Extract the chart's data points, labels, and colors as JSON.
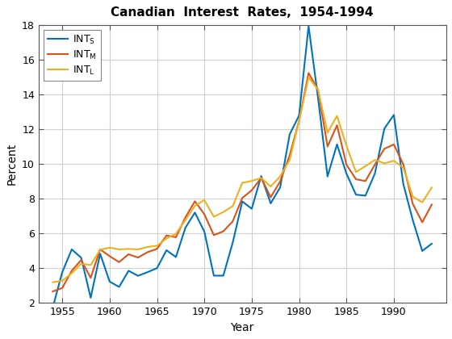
{
  "title": "Canadian  Interest  Rates,  1954-1994",
  "xlabel": "Year",
  "ylabel": "Percent",
  "years": [
    1954,
    1955,
    1956,
    1957,
    1958,
    1959,
    1960,
    1961,
    1962,
    1963,
    1964,
    1965,
    1966,
    1967,
    1968,
    1969,
    1970,
    1971,
    1972,
    1973,
    1974,
    1975,
    1976,
    1977,
    1978,
    1979,
    1980,
    1981,
    1982,
    1983,
    1984,
    1985,
    1986,
    1987,
    1988,
    1989,
    1990,
    1991,
    1992,
    1993,
    1994
  ],
  "INT_S": [
    1.73,
    3.76,
    5.07,
    4.59,
    2.29,
    4.82,
    3.22,
    2.91,
    3.84,
    3.55,
    3.76,
    3.99,
    5.02,
    4.63,
    6.32,
    7.19,
    6.09,
    3.56,
    3.56,
    5.47,
    7.83,
    7.41,
    9.29,
    7.72,
    8.64,
    11.68,
    12.78,
    17.93,
    13.78,
    9.27,
    11.11,
    9.43,
    8.22,
    8.16,
    9.44,
    12.02,
    12.81,
    8.83,
    6.76,
    4.98,
    5.4
  ],
  "INT_M": [
    2.65,
    2.85,
    3.84,
    4.46,
    3.43,
    5.07,
    4.68,
    4.34,
    4.79,
    4.6,
    4.91,
    5.1,
    5.87,
    5.77,
    6.91,
    7.84,
    7.09,
    5.89,
    6.11,
    6.69,
    8.03,
    8.47,
    9.18,
    8.07,
    8.98,
    10.48,
    12.48,
    15.22,
    14.26,
    10.99,
    12.21,
    9.94,
    9.11,
    9.0,
    9.95,
    10.86,
    11.11,
    9.97,
    7.69,
    6.63,
    7.65
  ],
  "INT_L": [
    3.18,
    3.26,
    3.7,
    4.24,
    4.17,
    5.05,
    5.17,
    5.07,
    5.1,
    5.07,
    5.21,
    5.28,
    5.7,
    5.97,
    6.76,
    7.58,
    7.91,
    6.95,
    7.22,
    7.56,
    8.9,
    9.01,
    9.18,
    8.69,
    9.27,
    10.21,
    12.48,
    14.97,
    14.26,
    11.79,
    12.75,
    11.04,
    9.52,
    9.86,
    10.22,
    10.02,
    10.17,
    9.77,
    8.1,
    7.78,
    8.63
  ],
  "color_S": "#0072BD",
  "color_M": "#D95319",
  "color_L": "#EDB120",
  "linewidth": 1.5,
  "xlim": [
    1952.5,
    1995.5
  ],
  "ylim": [
    2,
    18
  ],
  "yticks": [
    2,
    4,
    6,
    8,
    10,
    12,
    14,
    16,
    18
  ],
  "xticks": [
    1955,
    1960,
    1965,
    1970,
    1975,
    1980,
    1985,
    1990
  ],
  "grid_color": "#D0D0D0",
  "bg_color": "#FFFFFF",
  "legend_labels": [
    "INT$_\\mathregular{S}$",
    "INT$_\\mathregular{M}$",
    "INT$_\\mathregular{L}$"
  ]
}
